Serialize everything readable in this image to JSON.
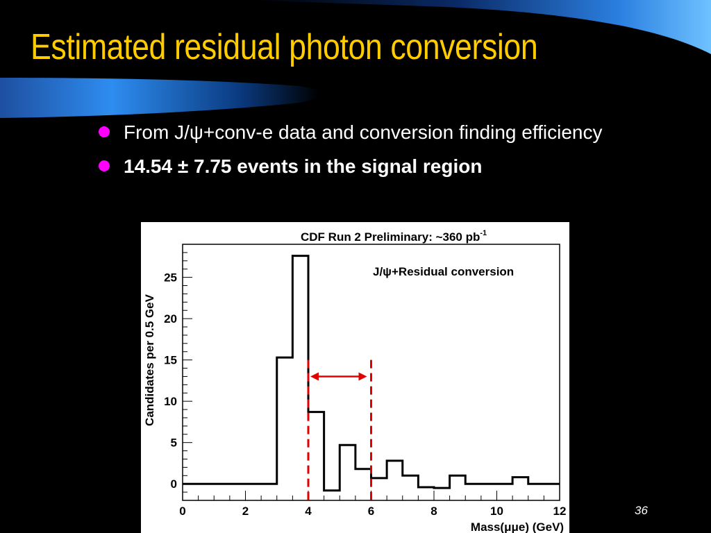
{
  "slide": {
    "title": "Estimated residual photon conversion",
    "bullets": [
      {
        "text": "From J/ψ+conv-e data and conversion finding efficiency"
      },
      {
        "text": "14.54 ± 7.75 events in the signal region"
      }
    ],
    "page_number": "36"
  },
  "colors": {
    "title": "#FFCC00",
    "bullet_dot": "#FF00FF",
    "swoosh_light": "#3FA9F5",
    "swoosh_dark": "#0A2A66",
    "signal_region": "#E00000"
  },
  "chart_data": {
    "type": "histogram",
    "title": "CDF Run 2 Preliminary: ~360 pb",
    "title_superscript": "-1",
    "legend": "J/ψ+Residual conversion",
    "xlabel": "Mass(μμe) (GeV)",
    "ylabel": "Candidates per 0.5 GeV",
    "xlim": [
      0,
      12
    ],
    "ylim": [
      -2,
      29
    ],
    "xticks": [
      0,
      2,
      4,
      6,
      8,
      10,
      12
    ],
    "yticks": [
      0,
      5,
      10,
      15,
      20,
      25
    ],
    "grid": false,
    "bin_width": 0.5,
    "bin_edges": [
      0,
      0.5,
      1,
      1.5,
      2,
      2.5,
      3,
      3.5,
      4,
      4.5,
      5,
      5.5,
      6,
      6.5,
      7,
      7.5,
      8,
      8.5,
      9,
      9.5,
      10,
      10.5,
      11,
      11.5,
      12
    ],
    "values": [
      0,
      0,
      0,
      0,
      0,
      0,
      15.3,
      27.6,
      8.7,
      -0.8,
      4.7,
      1.8,
      0.7,
      2.8,
      1.0,
      -0.4,
      -0.5,
      1.0,
      0,
      0,
      0,
      0.8,
      0,
      0
    ],
    "signal_region": [
      4,
      6
    ],
    "signal_region_line_top": 15
  }
}
